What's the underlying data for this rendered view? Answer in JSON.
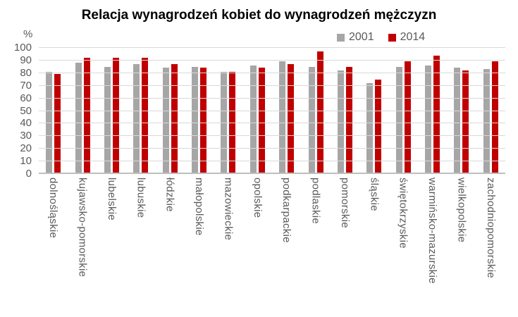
{
  "title": "Relacja wynagrodzeń kobiet do wynagrodzeń mężczyzn",
  "colors": {
    "series_2001": "#A6A6A6",
    "series_2014": "#C00000",
    "gridline": "#D9D9D9",
    "axis_text": "#595959",
    "title_text": "#000000"
  },
  "chart_data": {
    "type": "bar",
    "title": "Relacja wynagrodzeń kobiet do wynagrodzeń mężczyzn",
    "xlabel": "",
    "ylabel": "%",
    "ylim": [
      0,
      100
    ],
    "ytick_step": 10,
    "grid": true,
    "legend_position": "top-right",
    "categories": [
      "dolnośląskie",
      "kujawsko-pomorskie",
      "lubelskie",
      "lubuskie",
      "łódzkie",
      "małopolskie",
      "mazowieckie",
      "opolskie",
      "podkarpackie",
      "podlaskie",
      "pomorskie",
      "śląskie",
      "świętokrzyskie",
      "warmińsko-mazurskie",
      "wielkopolskie",
      "zachodniopomorskie"
    ],
    "series": [
      {
        "name": "2001",
        "color": "#A6A6A6",
        "values": [
          80,
          87,
          84,
          86,
          83,
          84,
          80,
          85,
          88,
          84,
          81,
          71,
          84,
          85,
          83,
          82
        ]
      },
      {
        "name": "2014",
        "color": "#C00000",
        "values": [
          78,
          91,
          91,
          91,
          86,
          83,
          80,
          83,
          86,
          96,
          84,
          74,
          88,
          93,
          81,
          88
        ]
      }
    ]
  }
}
